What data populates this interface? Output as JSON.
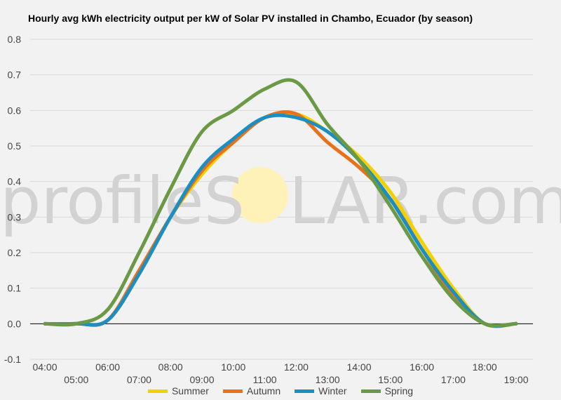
{
  "chart_data": {
    "type": "line",
    "title": "Hourly avg kWh electricity output per kW of Solar PV installed in Chambo, Ecuador (by season)",
    "xlabel": "",
    "ylabel": "",
    "ylim": [
      -0.1,
      0.8
    ],
    "yticks": [
      "0.8",
      "0.7",
      "0.6",
      "0.5",
      "0.4",
      "0.3",
      "0.2",
      "0.1",
      "0.0",
      "-0.1"
    ],
    "x": [
      "04:00",
      "05:00",
      "06:00",
      "07:00",
      "08:00",
      "09:00",
      "10:00",
      "11:00",
      "12:00",
      "13:00",
      "14:00",
      "15:00",
      "16:00",
      "17:00",
      "18:00",
      "19:00"
    ],
    "grid": true,
    "legend_position": "bottom",
    "series": [
      {
        "name": "Summer",
        "color": "#f5d000",
        "values": [
          0.0,
          0.0,
          0.01,
          0.14,
          0.3,
          0.42,
          0.51,
          0.58,
          0.59,
          0.54,
          0.47,
          0.37,
          0.23,
          0.1,
          0.0,
          0.0
        ]
      },
      {
        "name": "Autumn",
        "color": "#e8711c",
        "values": [
          0.0,
          0.0,
          0.01,
          0.15,
          0.3,
          0.43,
          0.51,
          0.58,
          0.59,
          0.51,
          0.44,
          0.35,
          0.21,
          0.08,
          0.0,
          0.0
        ]
      },
      {
        "name": "Winter",
        "color": "#1b8ec2",
        "values": [
          0.0,
          0.0,
          0.01,
          0.14,
          0.3,
          0.44,
          0.52,
          0.58,
          0.58,
          0.54,
          0.46,
          0.35,
          0.21,
          0.09,
          0.0,
          0.0
        ]
      },
      {
        "name": "Spring",
        "color": "#6a9a45",
        "values": [
          0.0,
          0.0,
          0.04,
          0.2,
          0.38,
          0.54,
          0.6,
          0.66,
          0.68,
          0.56,
          0.46,
          0.33,
          0.19,
          0.07,
          0.0,
          0.0
        ]
      }
    ]
  },
  "watermark": {
    "text_left": "profileS",
    "text_right": "LAR.com",
    "sun_color": "#fff2b8",
    "text_color": "#d2d2d2"
  }
}
